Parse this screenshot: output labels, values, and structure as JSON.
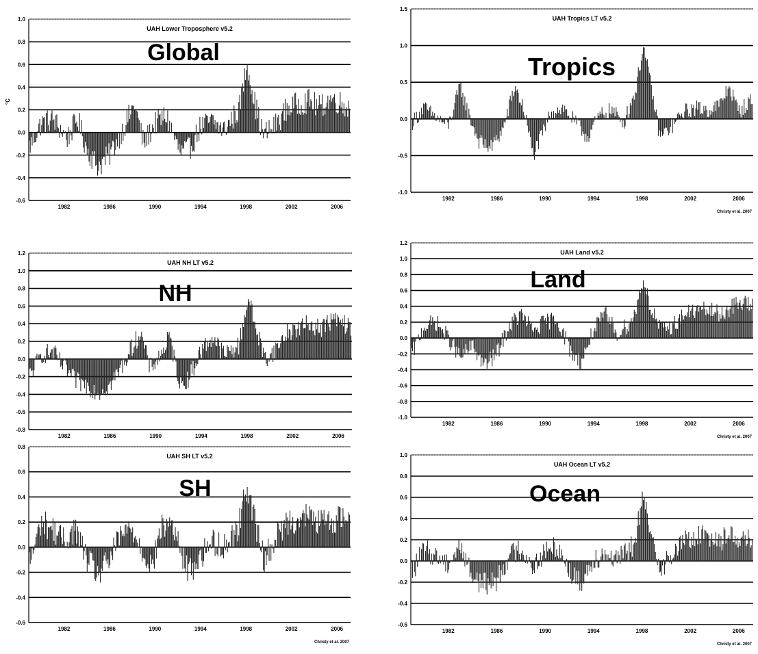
{
  "chart_data": [
    {
      "id": "global",
      "type": "bar",
      "title": "UAH Lower Troposphere v5.2",
      "region_label": "Global",
      "ylabel": "°C",
      "ylim": [
        -0.6,
        1.0
      ],
      "yticks": [
        -0.6,
        -0.4,
        -0.2,
        0.0,
        0.2,
        0.4,
        0.6,
        0.8,
        1.0
      ],
      "ytick_labels": [
        "-0.6",
        "-0.4",
        "-0.2",
        "0.0",
        "0.2",
        "0.4",
        "0.6",
        "0.8",
        "1.0"
      ],
      "xlim": [
        1978.9,
        2007.2
      ],
      "xticks": [
        1978,
        1982,
        1986,
        1990,
        1994,
        1998,
        2002,
        2006
      ],
      "anchors": [
        [
          1979.0,
          -0.12
        ],
        [
          1980.0,
          0.08
        ],
        [
          1981.0,
          0.12
        ],
        [
          1982.3,
          -0.05
        ],
        [
          1983.2,
          0.12
        ],
        [
          1984.0,
          -0.15
        ],
        [
          1985.0,
          -0.3
        ],
        [
          1986.0,
          -0.2
        ],
        [
          1987.3,
          0.05
        ],
        [
          1988.2,
          0.25
        ],
        [
          1989.0,
          -0.1
        ],
        [
          1990.0,
          0.08
        ],
        [
          1991.0,
          0.15
        ],
        [
          1992.2,
          -0.18
        ],
        [
          1993.0,
          -0.15
        ],
        [
          1994.0,
          0.05
        ],
        [
          1995.0,
          0.1
        ],
        [
          1996.0,
          0.02
        ],
        [
          1997.4,
          0.2
        ],
        [
          1998.1,
          0.62
        ],
        [
          1998.8,
          0.25
        ],
        [
          1999.5,
          -0.02
        ],
        [
          2000.5,
          0.05
        ],
        [
          2001.5,
          0.2
        ],
        [
          2002.5,
          0.25
        ],
        [
          2003.5,
          0.28
        ],
        [
          2004.5,
          0.22
        ],
        [
          2005.5,
          0.3
        ],
        [
          2006.5,
          0.25
        ],
        [
          2007.1,
          0.22
        ]
      ],
      "credit": ""
    },
    {
      "id": "tropics",
      "type": "bar",
      "title": "UAH Tropics LT v5.2",
      "region_label": "Tropics",
      "ylabel": "",
      "ylim": [
        -1.0,
        1.5
      ],
      "yticks": [
        -1.0,
        -0.5,
        0.0,
        0.5,
        1.0,
        1.5
      ],
      "ytick_labels": [
        "-1.0",
        "-0.5",
        "0.0",
        "0.5",
        "1.0",
        "1.5"
      ],
      "xlim": [
        1978.9,
        2007.2
      ],
      "xticks": [
        1978,
        1982,
        1986,
        1990,
        1994,
        1998,
        2002,
        2006
      ],
      "anchors": [
        [
          1979.0,
          -0.05
        ],
        [
          1980.0,
          0.15
        ],
        [
          1981.0,
          0.02
        ],
        [
          1982.0,
          -0.1
        ],
        [
          1983.0,
          0.45
        ],
        [
          1983.6,
          0.1
        ],
        [
          1984.5,
          -0.3
        ],
        [
          1985.5,
          -0.4
        ],
        [
          1986.5,
          -0.15
        ],
        [
          1987.5,
          0.45
        ],
        [
          1988.3,
          0.1
        ],
        [
          1989.0,
          -0.5
        ],
        [
          1989.8,
          -0.2
        ],
        [
          1990.5,
          0.1
        ],
        [
          1991.5,
          0.15
        ],
        [
          1992.5,
          -0.05
        ],
        [
          1993.5,
          -0.25
        ],
        [
          1994.5,
          0.05
        ],
        [
          1995.5,
          0.12
        ],
        [
          1996.5,
          -0.05
        ],
        [
          1997.5,
          0.4
        ],
        [
          1998.1,
          1.0
        ],
        [
          1998.7,
          0.5
        ],
        [
          1999.5,
          -0.25
        ],
        [
          2000.5,
          -0.1
        ],
        [
          2001.5,
          0.1
        ],
        [
          2002.5,
          0.15
        ],
        [
          2003.5,
          0.12
        ],
        [
          2004.5,
          0.2
        ],
        [
          2005.2,
          0.45
        ],
        [
          2006.0,
          0.1
        ],
        [
          2007.0,
          0.25
        ]
      ],
      "credit": "Christy et al. 2007"
    },
    {
      "id": "nh",
      "type": "bar",
      "title": "UAH NH LT v5.2",
      "region_label": "NH",
      "ylabel": "",
      "ylim": [
        -0.8,
        1.2
      ],
      "yticks": [
        -0.8,
        -0.6,
        -0.4,
        -0.2,
        0.0,
        0.2,
        0.4,
        0.6,
        0.8,
        1.0,
        1.2
      ],
      "ytick_labels": [
        "-0.8",
        "-0.6",
        "-0.4",
        "-0.2",
        "0.0",
        "0.2",
        "0.4",
        "0.6",
        "0.8",
        "1.0",
        "1.2"
      ],
      "xlim": [
        1978.9,
        2007.2
      ],
      "xticks": [
        1978,
        1982,
        1986,
        1990,
        1994,
        1998,
        2002,
        2006
      ],
      "anchors": [
        [
          1979.0,
          -0.18
        ],
        [
          1980.0,
          0.05
        ],
        [
          1981.0,
          0.08
        ],
        [
          1982.0,
          -0.1
        ],
        [
          1983.0,
          -0.25
        ],
        [
          1984.0,
          -0.3
        ],
        [
          1985.0,
          -0.38
        ],
        [
          1986.0,
          -0.3
        ],
        [
          1987.0,
          -0.1
        ],
        [
          1988.0,
          0.15
        ],
        [
          1988.7,
          0.3
        ],
        [
          1989.5,
          -0.1
        ],
        [
          1990.5,
          0.05
        ],
        [
          1991.2,
          0.25
        ],
        [
          1992.2,
          -0.3
        ],
        [
          1993.0,
          -0.2
        ],
        [
          1994.0,
          0.1
        ],
        [
          1995.0,
          0.25
        ],
        [
          1996.0,
          0.05
        ],
        [
          1997.3,
          0.15
        ],
        [
          1998.1,
          0.7
        ],
        [
          1998.8,
          0.35
        ],
        [
          1999.6,
          0.0
        ],
        [
          2000.5,
          0.1
        ],
        [
          2001.5,
          0.3
        ],
        [
          2002.5,
          0.35
        ],
        [
          2003.5,
          0.4
        ],
        [
          2004.5,
          0.35
        ],
        [
          2005.5,
          0.45
        ],
        [
          2006.5,
          0.4
        ],
        [
          2007.1,
          0.35
        ]
      ],
      "credit": ""
    },
    {
      "id": "land",
      "type": "bar",
      "title": "UAH Land v5.2",
      "region_label": "Land",
      "ylabel": "",
      "ylim": [
        -1.0,
        1.2
      ],
      "yticks": [
        -1.0,
        -0.8,
        -0.6,
        -0.4,
        -0.2,
        0.0,
        0.2,
        0.4,
        0.6,
        0.8,
        1.0,
        1.2
      ],
      "ytick_labels": [
        "-1.0",
        "-0.8",
        "-0.6",
        "-0.4",
        "-0.2",
        "0.0",
        "0.2",
        "0.4",
        "0.6",
        "0.8",
        "1.0",
        "1.2"
      ],
      "xlim": [
        1978.9,
        2007.2
      ],
      "xticks": [
        1978,
        1982,
        1986,
        1990,
        1994,
        1998,
        2002,
        2006
      ],
      "anchors": [
        [
          1979.0,
          -0.2
        ],
        [
          1980.0,
          0.15
        ],
        [
          1981.0,
          0.2
        ],
        [
          1982.0,
          0.0
        ],
        [
          1983.0,
          -0.25
        ],
        [
          1984.0,
          -0.1
        ],
        [
          1985.0,
          -0.35
        ],
        [
          1986.0,
          -0.2
        ],
        [
          1987.0,
          0.15
        ],
        [
          1988.0,
          0.3
        ],
        [
          1989.0,
          0.1
        ],
        [
          1990.0,
          0.2
        ],
        [
          1991.0,
          0.25
        ],
        [
          1992.2,
          -0.2
        ],
        [
          1993.0,
          -0.3
        ],
        [
          1994.0,
          0.1
        ],
        [
          1995.0,
          0.3
        ],
        [
          1996.0,
          0.05
        ],
        [
          1997.3,
          0.25
        ],
        [
          1998.1,
          0.75
        ],
        [
          1998.8,
          0.35
        ],
        [
          1999.6,
          0.1
        ],
        [
          2000.5,
          0.15
        ],
        [
          2001.5,
          0.3
        ],
        [
          2002.5,
          0.35
        ],
        [
          2003.5,
          0.35
        ],
        [
          2004.5,
          0.3
        ],
        [
          2005.5,
          0.4
        ],
        [
          2006.5,
          0.45
        ],
        [
          2007.1,
          0.4
        ]
      ],
      "credit": "Christy et al. 2007"
    },
    {
      "id": "sh",
      "type": "bar",
      "title": "UAH SH LT v5.2",
      "region_label": "SH",
      "ylabel": "",
      "ylim": [
        -0.6,
        0.8
      ],
      "yticks": [
        -0.6,
        -0.4,
        -0.2,
        0.0,
        0.2,
        0.4,
        0.6,
        0.8
      ],
      "ytick_labels": [
        "-0.6",
        "-0.4",
        "-0.2",
        "0.0",
        "0.2",
        "0.4",
        "0.6",
        "0.8"
      ],
      "xlim": [
        1978.9,
        2007.2
      ],
      "xticks": [
        1978,
        1982,
        1986,
        1990,
        1994,
        1998,
        2002,
        2006
      ],
      "anchors": [
        [
          1979.0,
          -0.12
        ],
        [
          1980.0,
          0.2
        ],
        [
          1981.0,
          0.15
        ],
        [
          1982.0,
          0.05
        ],
        [
          1983.0,
          0.15
        ],
        [
          1984.0,
          -0.1
        ],
        [
          1985.0,
          -0.22
        ],
        [
          1986.0,
          -0.1
        ],
        [
          1987.0,
          0.1
        ],
        [
          1988.0,
          0.15
        ],
        [
          1989.0,
          -0.05
        ],
        [
          1989.8,
          -0.15
        ],
        [
          1990.5,
          0.15
        ],
        [
          1991.5,
          0.2
        ],
        [
          1992.3,
          -0.05
        ],
        [
          1993.0,
          -0.2
        ],
        [
          1994.0,
          -0.08
        ],
        [
          1995.0,
          0.05
        ],
        [
          1996.0,
          0.0
        ],
        [
          1997.3,
          0.15
        ],
        [
          1998.1,
          0.5
        ],
        [
          1998.8,
          0.2
        ],
        [
          1999.6,
          -0.1
        ],
        [
          2000.5,
          0.05
        ],
        [
          2001.5,
          0.2
        ],
        [
          2002.5,
          0.22
        ],
        [
          2003.5,
          0.25
        ],
        [
          2004.5,
          0.2
        ],
        [
          2005.5,
          0.2
        ],
        [
          2006.5,
          0.25
        ],
        [
          2007.1,
          0.2
        ]
      ],
      "credit": "Christy et al. 2007"
    },
    {
      "id": "ocean",
      "type": "bar",
      "title": "UAH Ocean LT v5.2",
      "region_label": "Ocean",
      "ylabel": "",
      "ylim": [
        -0.6,
        1.0
      ],
      "yticks": [
        -0.6,
        -0.4,
        -0.2,
        0.0,
        0.2,
        0.4,
        0.6,
        0.8,
        1.0
      ],
      "ytick_labels": [
        "-0.6",
        "-0.4",
        "-0.2",
        "0.0",
        "0.2",
        "0.4",
        "0.6",
        "0.8",
        "1.0"
      ],
      "xlim": [
        1978.9,
        2007.2
      ],
      "xticks": [
        1978,
        1982,
        1986,
        1990,
        1994,
        1998,
        2002,
        2006
      ],
      "anchors": [
        [
          1979.0,
          -0.1
        ],
        [
          1980.0,
          0.1
        ],
        [
          1981.0,
          0.05
        ],
        [
          1982.0,
          -0.02
        ],
        [
          1983.0,
          0.15
        ],
        [
          1984.0,
          -0.15
        ],
        [
          1985.0,
          -0.22
        ],
        [
          1986.0,
          -0.18
        ],
        [
          1987.0,
          0.05
        ],
        [
          1988.0,
          0.12
        ],
        [
          1989.0,
          -0.05
        ],
        [
          1990.0,
          0.08
        ],
        [
          1991.0,
          0.15
        ],
        [
          1992.3,
          -0.15
        ],
        [
          1993.0,
          -0.2
        ],
        [
          1994.0,
          0.02
        ],
        [
          1995.0,
          0.08
        ],
        [
          1996.0,
          0.0
        ],
        [
          1997.3,
          0.15
        ],
        [
          1998.1,
          0.6
        ],
        [
          1998.8,
          0.2
        ],
        [
          1999.6,
          -0.05
        ],
        [
          2000.5,
          0.05
        ],
        [
          2001.5,
          0.2
        ],
        [
          2002.5,
          0.22
        ],
        [
          2003.5,
          0.25
        ],
        [
          2004.5,
          0.2
        ],
        [
          2005.5,
          0.25
        ],
        [
          2006.5,
          0.2
        ],
        [
          2007.1,
          0.18
        ]
      ],
      "credit": "Christy et al. 2007"
    }
  ]
}
